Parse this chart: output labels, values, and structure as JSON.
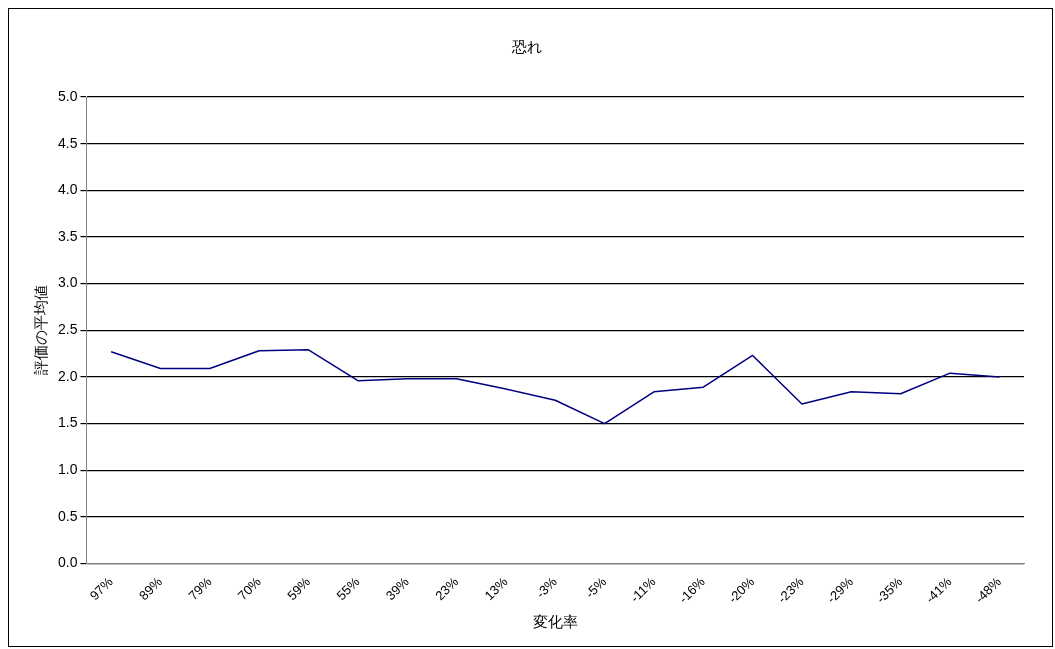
{
  "chart_data": {
    "type": "line",
    "title": "恐れ",
    "xlabel": "変化率",
    "ylabel": "評価の平均値",
    "categories": [
      "97%",
      "89%",
      "79%",
      "70%",
      "59%",
      "55%",
      "39%",
      "23%",
      "13%",
      "-3%",
      "-5%",
      "-11%",
      "-16%",
      "-20%",
      "-23%",
      "-29%",
      "-35%",
      "-41%",
      "-48%"
    ],
    "series": [
      {
        "color": "#000080",
        "values": [
          2.27,
          2.09,
          2.09,
          2.28,
          2.29,
          1.96,
          1.98,
          1.98,
          1.87,
          1.75,
          1.5,
          1.84,
          1.89,
          2.23,
          1.71,
          1.84,
          1.82,
          2.04,
          2.0
        ]
      }
    ],
    "ylim": [
      0,
      5
    ],
    "yticks": [
      {
        "value": 0,
        "label": "0.0"
      },
      {
        "value": 0.5,
        "label": "0.5"
      },
      {
        "value": 1,
        "label": "1.0"
      },
      {
        "value": 1.5,
        "label": "1.5"
      },
      {
        "value": 2,
        "label": "2.0"
      },
      {
        "value": 2.5,
        "label": "2.5"
      },
      {
        "value": 3,
        "label": "3.0"
      },
      {
        "value": 3.5,
        "label": "3.5"
      },
      {
        "value": 4,
        "label": "4.0"
      },
      {
        "value": 4.5,
        "label": "4.5"
      },
      {
        "value": 5,
        "label": "5.0"
      }
    ],
    "grid": "y",
    "legend": false,
    "marker": "none",
    "line_style": "solid"
  }
}
